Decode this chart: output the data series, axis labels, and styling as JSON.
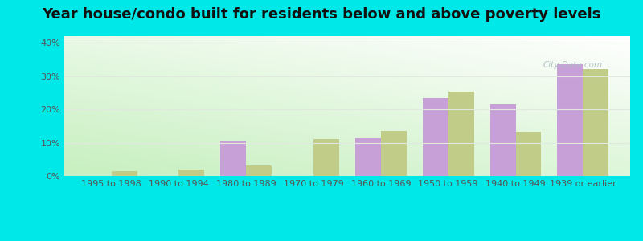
{
  "title": "Year house/condo built for residents below and above poverty levels",
  "categories": [
    "1995 to 1998",
    "1990 to 1994",
    "1980 to 1989",
    "1970 to 1979",
    "1960 to 1969",
    "1950 to 1959",
    "1940 to 1949",
    "1939 or earlier"
  ],
  "below_poverty": [
    0,
    0,
    10.3,
    0,
    11.4,
    23.5,
    21.5,
    33.5
  ],
  "above_poverty": [
    1.5,
    2.0,
    3.2,
    11.2,
    13.5,
    25.3,
    13.2,
    32.0
  ],
  "color_below": "#c8a0d8",
  "color_above": "#c0cc88",
  "bar_width": 0.38,
  "ylim": [
    0,
    42
  ],
  "yticks": [
    0,
    10,
    20,
    30,
    40
  ],
  "ytick_labels": [
    "0%",
    "10%",
    "20%",
    "30%",
    "40%"
  ],
  "bg_top_color": "#f0f8f0",
  "bg_bottom_color": "#c8f0c0",
  "outer_background": "#00e8e8",
  "title_fontsize": 13,
  "axis_fontsize": 8,
  "grid_color": "#e0e8e0"
}
